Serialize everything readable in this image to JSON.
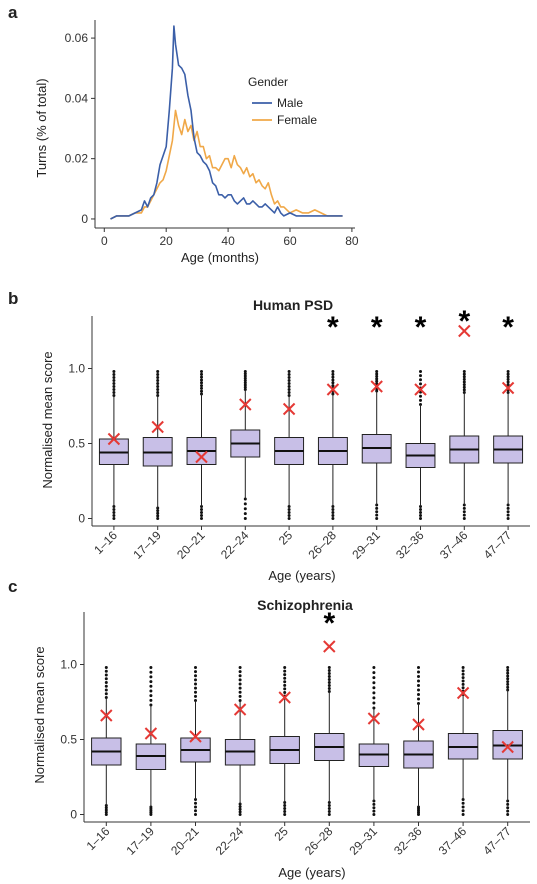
{
  "chart_data": [
    {
      "panel": "a",
      "type": "line",
      "title": "",
      "xlabel": "Age (months)",
      "ylabel": "Turns (% of total)",
      "xlim": [
        -3,
        81
      ],
      "ylim": [
        -0.003,
        0.066
      ],
      "xticks": [
        "0",
        "20",
        "40",
        "60",
        "80"
      ],
      "yticks": [
        "0",
        "0.02",
        "0.04",
        "0.06"
      ],
      "legend_title": "Gender",
      "legend_position": "top-right",
      "series": [
        {
          "name": "Male",
          "color": "#3b5fa8",
          "points": [
            [
              2,
              0
            ],
            [
              4,
              0.001
            ],
            [
              6,
              0.001
            ],
            [
              8,
              0.001
            ],
            [
              10,
              0.002
            ],
            [
              12,
              0.003
            ],
            [
              13,
              0.006
            ],
            [
              14,
              0.004
            ],
            [
              15,
              0.007
            ],
            [
              16,
              0.008
            ],
            [
              17,
              0.012
            ],
            [
              18,
              0.018
            ],
            [
              19,
              0.021
            ],
            [
              20,
              0.024
            ],
            [
              21,
              0.036
            ],
            [
              22,
              0.05
            ],
            [
              22.5,
              0.064
            ],
            [
              23,
              0.058
            ],
            [
              24,
              0.051
            ],
            [
              25,
              0.05
            ],
            [
              26,
              0.048
            ],
            [
              27,
              0.041
            ],
            [
              28,
              0.036
            ],
            [
              29,
              0.027
            ],
            [
              30,
              0.022
            ],
            [
              31,
              0.021
            ],
            [
              32,
              0.019
            ],
            [
              33,
              0.018
            ],
            [
              34,
              0.016
            ],
            [
              35,
              0.012
            ],
            [
              36,
              0.011
            ],
            [
              37,
              0.008
            ],
            [
              38,
              0.008
            ],
            [
              39,
              0.007
            ],
            [
              40,
              0.008
            ],
            [
              41,
              0.008
            ],
            [
              42,
              0.006
            ],
            [
              43,
              0.005
            ],
            [
              44,
              0.006
            ],
            [
              45,
              0.007
            ],
            [
              46,
              0.005
            ],
            [
              47,
              0.005
            ],
            [
              48,
              0.006
            ],
            [
              49,
              0.005
            ],
            [
              50,
              0.004
            ],
            [
              51,
              0.004
            ],
            [
              52,
              0.005
            ],
            [
              53,
              0.004
            ],
            [
              54,
              0.003
            ],
            [
              55,
              0.002
            ],
            [
              56,
              0.004
            ],
            [
              57,
              0.002
            ],
            [
              58,
              0.001
            ],
            [
              60,
              0.002
            ],
            [
              62,
              0.001
            ],
            [
              64,
              0.001
            ],
            [
              66,
              0.001
            ],
            [
              68,
              0.001
            ],
            [
              70,
              0.001
            ],
            [
              72,
              0.001
            ],
            [
              74,
              0.001
            ],
            [
              77,
              0.001
            ]
          ]
        },
        {
          "name": "Female",
          "color": "#f0a848",
          "points": [
            [
              2,
              0
            ],
            [
              4,
              0.001
            ],
            [
              6,
              0.001
            ],
            [
              8,
              0.001
            ],
            [
              10,
              0.002
            ],
            [
              12,
              0.002
            ],
            [
              13,
              0.004
            ],
            [
              14,
              0.004
            ],
            [
              15,
              0.006
            ],
            [
              16,
              0.008
            ],
            [
              17,
              0.01
            ],
            [
              18,
              0.012
            ],
            [
              19,
              0.013
            ],
            [
              20,
              0.016
            ],
            [
              21,
              0.021
            ],
            [
              22,
              0.026
            ],
            [
              23,
              0.036
            ],
            [
              24,
              0.031
            ],
            [
              25,
              0.028
            ],
            [
              26,
              0.033
            ],
            [
              27,
              0.029
            ],
            [
              28,
              0.031
            ],
            [
              29,
              0.026
            ],
            [
              30,
              0.029
            ],
            [
              31,
              0.024
            ],
            [
              32,
              0.024
            ],
            [
              33,
              0.02
            ],
            [
              34,
              0.021
            ],
            [
              35,
              0.017
            ],
            [
              36,
              0.017
            ],
            [
              37,
              0.016
            ],
            [
              38,
              0.018
            ],
            [
              39,
              0.02
            ],
            [
              40,
              0.02
            ],
            [
              41,
              0.017
            ],
            [
              42,
              0.021
            ],
            [
              43,
              0.018
            ],
            [
              44,
              0.017
            ],
            [
              45,
              0.015
            ],
            [
              46,
              0.017
            ],
            [
              47,
              0.014
            ],
            [
              48,
              0.015
            ],
            [
              49,
              0.012
            ],
            [
              50,
              0.013
            ],
            [
              51,
              0.011
            ],
            [
              52,
              0.01
            ],
            [
              53,
              0.012
            ],
            [
              54,
              0.008
            ],
            [
              55,
              0.005
            ],
            [
              56,
              0.006
            ],
            [
              57,
              0.004
            ],
            [
              58,
              0.004
            ],
            [
              59,
              0.003
            ],
            [
              60,
              0.002
            ],
            [
              62,
              0.003
            ],
            [
              64,
              0.002
            ],
            [
              66,
              0.002
            ],
            [
              68,
              0.003
            ],
            [
              70,
              0.002
            ],
            [
              72,
              0.001
            ],
            [
              74,
              0.001
            ],
            [
              77,
              0.001
            ]
          ]
        }
      ]
    },
    {
      "panel": "b",
      "type": "box",
      "title": "Human PSD",
      "xlabel": "Age (years)",
      "ylabel": "Normalised mean score",
      "ylim": [
        -0.05,
        1.35
      ],
      "yticks": [
        "0",
        "0.5",
        "1.0"
      ],
      "categories": [
        "1–16",
        "17–19",
        "20–21",
        "22–24",
        "25",
        "26–28",
        "29–31",
        "32–36",
        "37–46",
        "47–77"
      ],
      "box_fill": "#c8bfe7",
      "marker_color": "#e53935",
      "boxes": [
        {
          "q1": 0.36,
          "median": 0.44,
          "q3": 0.53,
          "wlo": 0.08,
          "whi": 0.82
        },
        {
          "q1": 0.35,
          "median": 0.44,
          "q3": 0.54,
          "wlo": 0.07,
          "whi": 0.82
        },
        {
          "q1": 0.36,
          "median": 0.45,
          "q3": 0.54,
          "wlo": 0.08,
          "whi": 0.83
        },
        {
          "q1": 0.41,
          "median": 0.5,
          "q3": 0.59,
          "wlo": 0.13,
          "whi": 0.86
        },
        {
          "q1": 0.36,
          "median": 0.45,
          "q3": 0.54,
          "wlo": 0.08,
          "whi": 0.82
        },
        {
          "q1": 0.36,
          "median": 0.45,
          "q3": 0.54,
          "wlo": 0.08,
          "whi": 0.83
        },
        {
          "q1": 0.37,
          "median": 0.47,
          "q3": 0.56,
          "wlo": 0.09,
          "whi": 0.85
        },
        {
          "q1": 0.34,
          "median": 0.42,
          "q3": 0.5,
          "wlo": 0.08,
          "whi": 0.76
        },
        {
          "q1": 0.37,
          "median": 0.46,
          "q3": 0.55,
          "wlo": 0.09,
          "whi": 0.84
        },
        {
          "q1": 0.37,
          "median": 0.46,
          "q3": 0.55,
          "wlo": 0.09,
          "whi": 0.84
        }
      ],
      "observed": [
        0.53,
        0.61,
        0.41,
        0.76,
        0.73,
        0.86,
        0.88,
        0.86,
        1.25,
        0.87
      ],
      "significant": [
        false,
        false,
        false,
        false,
        false,
        true,
        true,
        true,
        true,
        true
      ],
      "significance_symbol": "*"
    },
    {
      "panel": "c",
      "type": "box",
      "title": "Schizophrenia",
      "xlabel": "Age (years)",
      "ylabel": "Normalised mean score",
      "ylim": [
        -0.05,
        1.35
      ],
      "yticks": [
        "0",
        "0.5",
        "1.0"
      ],
      "categories": [
        "1–16",
        "17–19",
        "20–21",
        "22–24",
        "25",
        "26–28",
        "29–31",
        "32–36",
        "37–46",
        "47–77"
      ],
      "box_fill": "#c8bfe7",
      "marker_color": "#e53935",
      "boxes": [
        {
          "q1": 0.33,
          "median": 0.42,
          "q3": 0.51,
          "wlo": 0.06,
          "whi": 0.78
        },
        {
          "q1": 0.3,
          "median": 0.39,
          "q3": 0.47,
          "wlo": 0.05,
          "whi": 0.73
        },
        {
          "q1": 0.35,
          "median": 0.43,
          "q3": 0.51,
          "wlo": 0.1,
          "whi": 0.76
        },
        {
          "q1": 0.33,
          "median": 0.42,
          "q3": 0.5,
          "wlo": 0.07,
          "whi": 0.76
        },
        {
          "q1": 0.34,
          "median": 0.43,
          "q3": 0.52,
          "wlo": 0.08,
          "whi": 0.79
        },
        {
          "q1": 0.36,
          "median": 0.45,
          "q3": 0.54,
          "wlo": 0.08,
          "whi": 0.82
        },
        {
          "q1": 0.32,
          "median": 0.4,
          "q3": 0.47,
          "wlo": 0.09,
          "whi": 0.71
        },
        {
          "q1": 0.31,
          "median": 0.4,
          "q3": 0.49,
          "wlo": 0.05,
          "whi": 0.74
        },
        {
          "q1": 0.37,
          "median": 0.45,
          "q3": 0.54,
          "wlo": 0.1,
          "whi": 0.8
        },
        {
          "q1": 0.37,
          "median": 0.46,
          "q3": 0.56,
          "wlo": 0.09,
          "whi": 0.83
        }
      ],
      "observed": [
        0.66,
        0.54,
        0.52,
        0.7,
        0.78,
        1.12,
        0.64,
        0.6,
        0.81,
        0.45
      ],
      "significant": [
        false,
        false,
        false,
        false,
        false,
        true,
        false,
        false,
        false,
        false
      ],
      "significance_symbol": "*"
    }
  ],
  "panel_labels": [
    "a",
    "b",
    "c"
  ]
}
